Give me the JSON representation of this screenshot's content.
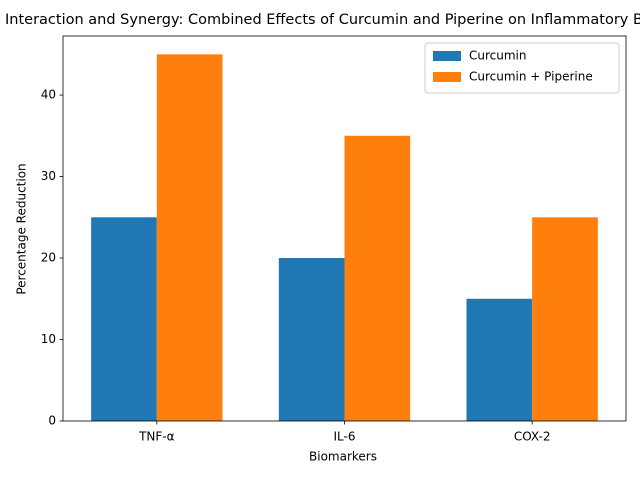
{
  "chart_data": {
    "type": "bar",
    "title": "Interaction and Synergy: Combined Effects of Curcumin and Piperine on Inflammatory Biomarkers",
    "xlabel": "Biomarkers",
    "ylabel": "Percentage Reduction",
    "categories": [
      "TNF-α",
      "IL-6",
      "COX-2"
    ],
    "series": [
      {
        "name": "Curcumin",
        "values": [
          25,
          20,
          15
        ],
        "color": "#1f77b4"
      },
      {
        "name": "Curcumin + Piperine",
        "values": [
          45,
          35,
          25
        ],
        "color": "#ff7f0e"
      }
    ],
    "ylim": [
      0,
      47.25
    ],
    "yticks": [
      "0",
      "10",
      "20",
      "30",
      "40"
    ],
    "grid": false,
    "legend_position": "top-right"
  }
}
